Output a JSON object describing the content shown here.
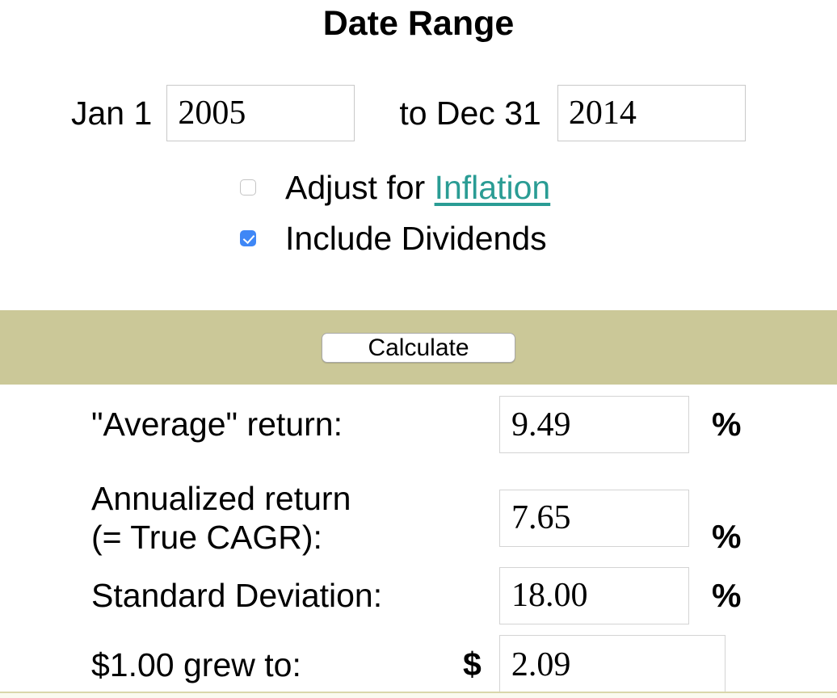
{
  "page": {
    "title": "Date Range"
  },
  "date_range": {
    "start_label": "Jan 1",
    "start_year": "2005",
    "to_label": "to Dec 31",
    "end_year": "2014"
  },
  "options": {
    "inflation": {
      "prefix": "Adjust for ",
      "link": "Inflation",
      "checked": false
    },
    "dividends": {
      "label": "Include Dividends",
      "checked": true
    }
  },
  "actions": {
    "calculate": "Calculate"
  },
  "results": {
    "average": {
      "label": "\"Average\" return:",
      "value": "9.49",
      "unit": "%"
    },
    "annualized": {
      "label_line1": "Annualized return",
      "label_line2": "(= True CAGR):",
      "value": "7.65",
      "unit": "%"
    },
    "stdev": {
      "label": "Standard Deviation:",
      "value": "18.00",
      "unit": "%"
    },
    "growth": {
      "label": "$1.00 grew to:",
      "currency": "$",
      "value": "2.09"
    }
  },
  "colors": {
    "band": "#cbc898",
    "link_teal": "#2a9c94",
    "checkbox_blue": "#3f87f6",
    "input_border": "#c9c9c9",
    "result_border": "#d4d4d4",
    "strip_line": "#d9d6ab",
    "strip_bg": "#fafaf0"
  }
}
